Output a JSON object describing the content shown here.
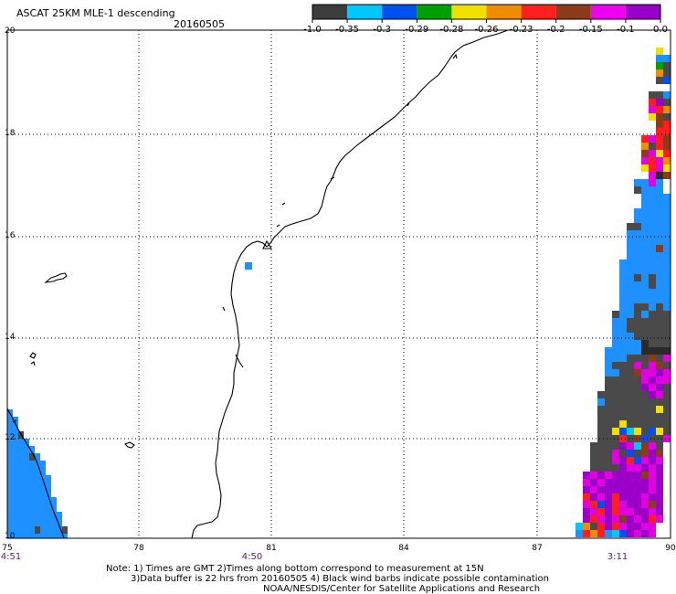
{
  "header": {
    "title": "ASCAT 25KM MLE-1 descending",
    "date": "20160505"
  },
  "legend": {
    "labels": [
      "-1.0",
      "-0.35",
      "-0.3",
      "-0.29",
      "-0.28",
      "-0.26",
      "-0.23",
      "-0.2",
      "-0.15",
      "-0.1",
      "0.0"
    ],
    "colors": [
      "#3c3c3c",
      "#00c8ff",
      "#0050f0",
      "#00a000",
      "#f0e000",
      "#f08c00",
      "#ff1e1e",
      "#8b3a1a",
      "#f000f0",
      "#9600c8"
    ]
  },
  "axes": {
    "y_labels": [
      "20",
      "18",
      "16",
      "14",
      "12",
      "10"
    ],
    "x_labels": [
      "75",
      "78",
      "81",
      "84",
      "87",
      "90"
    ],
    "times": [
      "4:51",
      "4:50",
      "3:11"
    ]
  },
  "notes": {
    "line1": "Note: 1) Times are GMT 2)Times along bottom correspond to measurement at 15N",
    "line2": "3)Data buffer is 22 hrs from 20160505 4) Black wind barbs indicate possible contamination",
    "line3": "NOAA/NESDIS/Center for Satellite Applications and Research"
  },
  "colors": {
    "grid": "#000000",
    "label_purple": "#7a0a8a"
  }
}
